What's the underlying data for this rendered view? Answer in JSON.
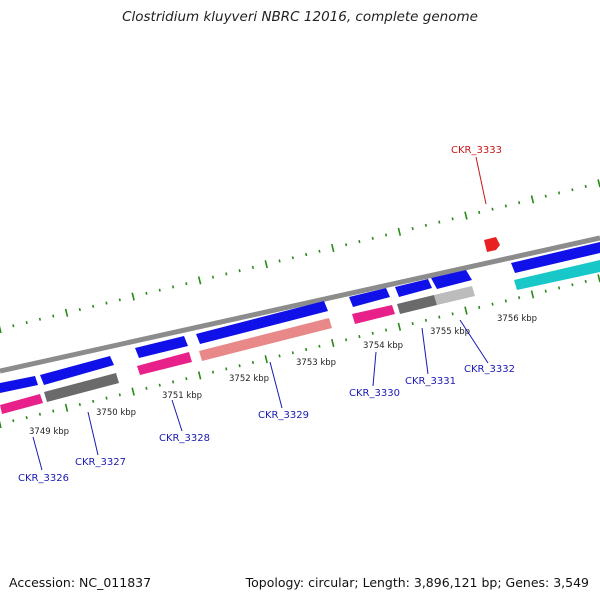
{
  "title": "Clostridium kluyveri NBRC 12016, complete genome",
  "footer": {
    "accession": "Accession: NC_011837",
    "info": "Topology: circular; Length: 3,896,121 bp; Genes: 3,549"
  },
  "colors": {
    "blue": "#1010e8",
    "pink": "#e8208a",
    "salmon": "#e88888",
    "dark_gray": "#6a6a6a",
    "light_gray": "#bcbcbc",
    "cyan": "#18c8c8",
    "red": "#e82020",
    "tick_green": "#2a8a1a",
    "label_blue": "#1a1ab4",
    "label_red": "#c81818"
  },
  "scale_labels": [
    "3749 kbp",
    "3750 kbp",
    "3751 kbp",
    "3752 kbp",
    "3753 kbp",
    "3754 kbp",
    "3755 kbp",
    "3756 kbp"
  ],
  "gene_labels": [
    {
      "text": "CKR_3326",
      "color": "label_blue"
    },
    {
      "text": "CKR_3327",
      "color": "label_blue"
    },
    {
      "text": "CKR_3328",
      "color": "label_blue"
    },
    {
      "text": "CKR_3329",
      "color": "label_blue"
    },
    {
      "text": "CKR_3330",
      "color": "label_blue"
    },
    {
      "text": "CKR_3331",
      "color": "label_blue"
    },
    {
      "text": "CKR_3332",
      "color": "label_blue"
    },
    {
      "text": "CKR_3333",
      "color": "label_red"
    }
  ]
}
